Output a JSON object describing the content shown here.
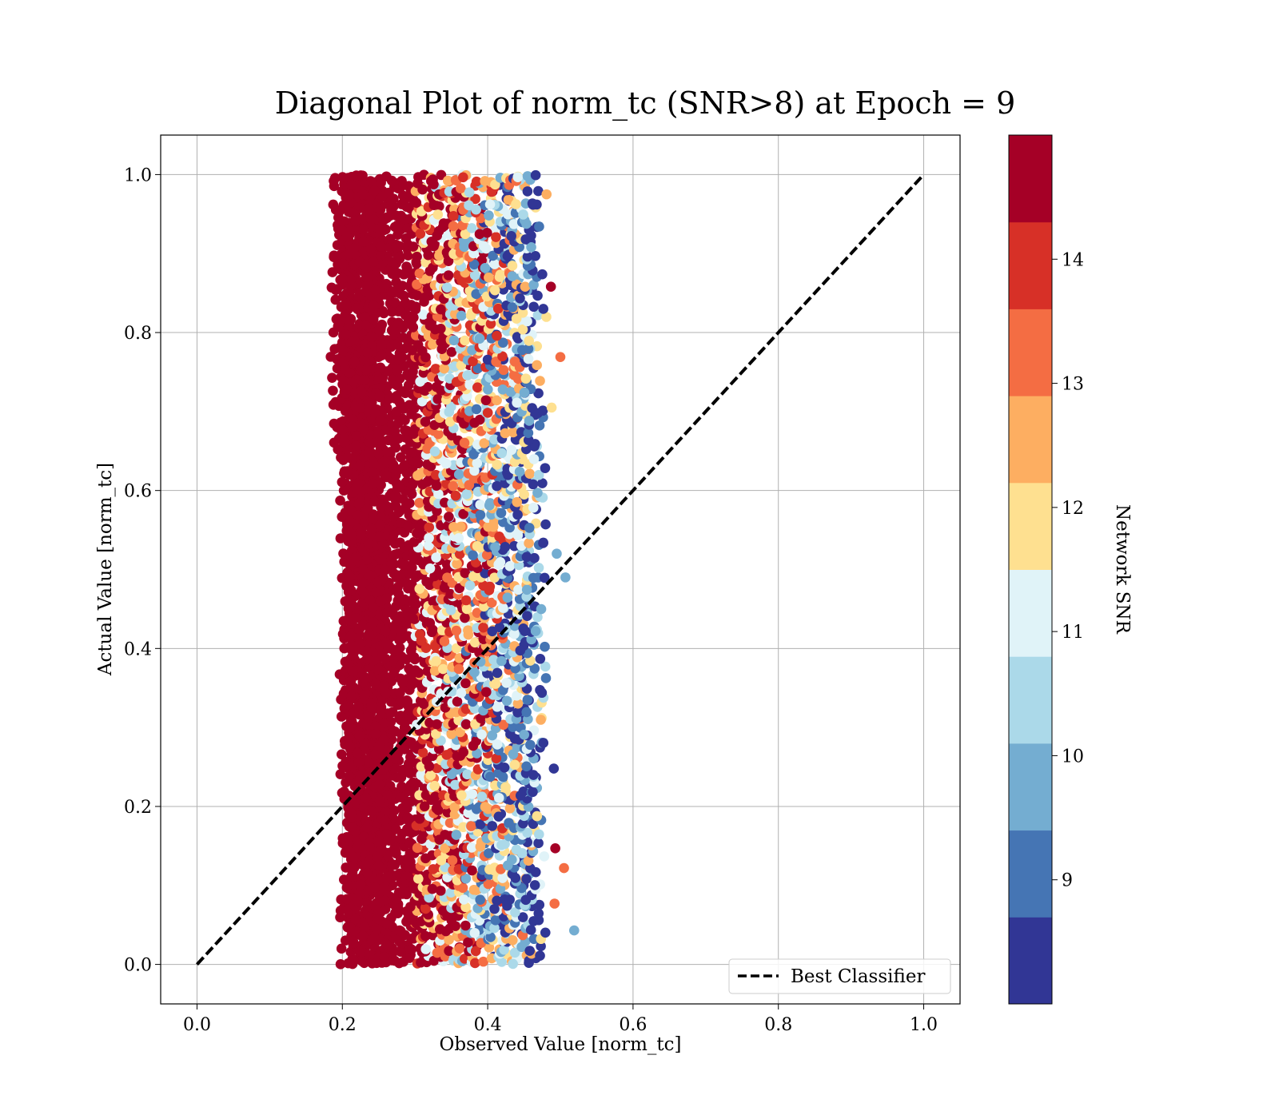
{
  "chart_data": {
    "type": "scatter",
    "title": "Diagonal Plot of norm_tc (SNR>8) at Epoch = 9",
    "xlabel": "Observed Value [norm_tc]",
    "ylabel": "Actual Value [norm_tc]",
    "xlim": [
      -0.05,
      1.05
    ],
    "ylim": [
      -0.05,
      1.05
    ],
    "xticks": [
      0.0,
      0.2,
      0.4,
      0.6,
      0.8,
      1.0
    ],
    "yticks": [
      0.0,
      0.2,
      0.4,
      0.6,
      0.8,
      1.0
    ],
    "xtick_labels": [
      "0.0",
      "0.2",
      "0.4",
      "0.6",
      "0.8",
      "1.0"
    ],
    "ytick_labels": [
      "0.0",
      "0.2",
      "0.4",
      "0.6",
      "0.8",
      "1.0"
    ],
    "grid": true,
    "legend": {
      "placement": "lower-right",
      "entries": [
        {
          "label": "Best Classifier",
          "style": "dashed",
          "color": "#000000"
        }
      ]
    },
    "reference_line": {
      "name": "Best Classifier",
      "x": [
        0.0,
        1.0
      ],
      "y": [
        0.0,
        1.0
      ],
      "style": "dashed",
      "color": "#000000"
    },
    "colorbar": {
      "label": "Network SNR",
      "range": [
        8.0,
        15.0
      ],
      "ticks": [
        9,
        10,
        11,
        12,
        13,
        14
      ],
      "tick_labels": [
        "9",
        "10",
        "11",
        "12",
        "13",
        "14"
      ],
      "bins": [
        {
          "from": 8.0,
          "to": 8.7,
          "color": "#313695"
        },
        {
          "from": 8.7,
          "to": 9.4,
          "color": "#4575b4"
        },
        {
          "from": 9.4,
          "to": 10.1,
          "color": "#74add1"
        },
        {
          "from": 10.1,
          "to": 10.8,
          "color": "#abd9e9"
        },
        {
          "from": 10.8,
          "to": 11.5,
          "color": "#e0f3f8"
        },
        {
          "from": 11.5,
          "to": 12.2,
          "color": "#fee090"
        },
        {
          "from": 12.2,
          "to": 12.9,
          "color": "#fdae61"
        },
        {
          "from": 12.9,
          "to": 13.6,
          "color": "#f46d43"
        },
        {
          "from": 13.6,
          "to": 14.3,
          "color": "#d73027"
        },
        {
          "from": 14.3,
          "to": 15.0,
          "color": "#a50026"
        }
      ]
    },
    "point_distribution": {
      "x_range": [
        0.18,
        0.52
      ],
      "y_range": [
        0.0,
        1.0
      ],
      "snr_vs_x": [
        {
          "x_from": 0.18,
          "x_to": 0.28,
          "snr": "14.3-15 (dense)"
        },
        {
          "x_from": 0.28,
          "x_to": 0.34,
          "snr": "12-15"
        },
        {
          "x_from": 0.34,
          "x_to": 0.4,
          "snr": "10-12"
        },
        {
          "x_from": 0.4,
          "x_to": 0.5,
          "snr": "8-11"
        }
      ]
    },
    "points": [
      {
        "x": 0.493,
        "y": 0.147,
        "snr": 14.6
      },
      {
        "x": 0.505,
        "y": 0.122,
        "snr": 13.2
      },
      {
        "x": 0.519,
        "y": 0.043,
        "snr": 9.8
      },
      {
        "x": 0.507,
        "y": 0.49,
        "snr": 9.5
      },
      {
        "x": 0.491,
        "y": 0.248,
        "snr": 8.4
      },
      {
        "x": 0.492,
        "y": 0.077,
        "snr": 13.0
      },
      {
        "x": 0.487,
        "y": 0.858,
        "snr": 14.6
      },
      {
        "x": 0.5,
        "y": 0.769,
        "snr": 13.2
      },
      {
        "x": 0.481,
        "y": 0.975,
        "snr": 12.6
      },
      {
        "x": 0.472,
        "y": 0.011,
        "snr": 8.4
      },
      {
        "x": 0.495,
        "y": 0.52,
        "snr": 9.8
      },
      {
        "x": 0.488,
        "y": 0.705,
        "snr": 12.0
      }
    ]
  }
}
